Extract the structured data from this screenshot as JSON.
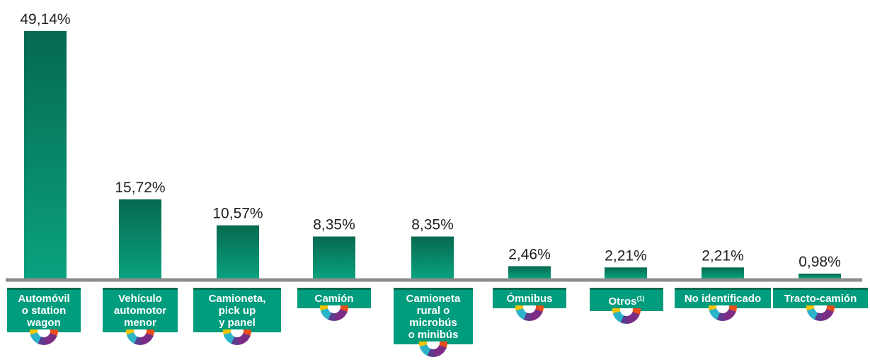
{
  "chart_data": {
    "type": "bar",
    "categories": [
      "Automóvil\no station\nwagon",
      "Vehículo\nautomotor\nmenor",
      "Camioneta,\npick up\ny panel",
      "Camión",
      "Camioneta\nrural o\nmicrobús\no minibús",
      "Ómnibus",
      "Otros",
      "No identificado",
      "Tracto-camión"
    ],
    "category_footnote_mark": [
      "",
      "",
      "",
      "",
      "",
      "",
      "(1)",
      "",
      ""
    ],
    "values": [
      49.14,
      15.72,
      10.57,
      8.35,
      8.35,
      2.46,
      2.21,
      2.21,
      0.98
    ],
    "value_labels": [
      "49,14%",
      "15,72%",
      "10,57%",
      "8,35%",
      "8,35%",
      "2,46%",
      "2,21%",
      "2,21%",
      "0,98%"
    ],
    "ylim": [
      0,
      50
    ],
    "title": "",
    "xlabel": "",
    "ylabel": "",
    "grid": false,
    "legend": "none",
    "colors": {
      "bar_top": "#06694f",
      "bar_bottom": "#0aa27f",
      "baseline": "#8c8c8c",
      "category_box": "#009c7e",
      "category_box_border": "#0b6b4f",
      "category_text": "#ffffff",
      "value_text": "#1f1f1f"
    },
    "icon": "donut-icon"
  }
}
